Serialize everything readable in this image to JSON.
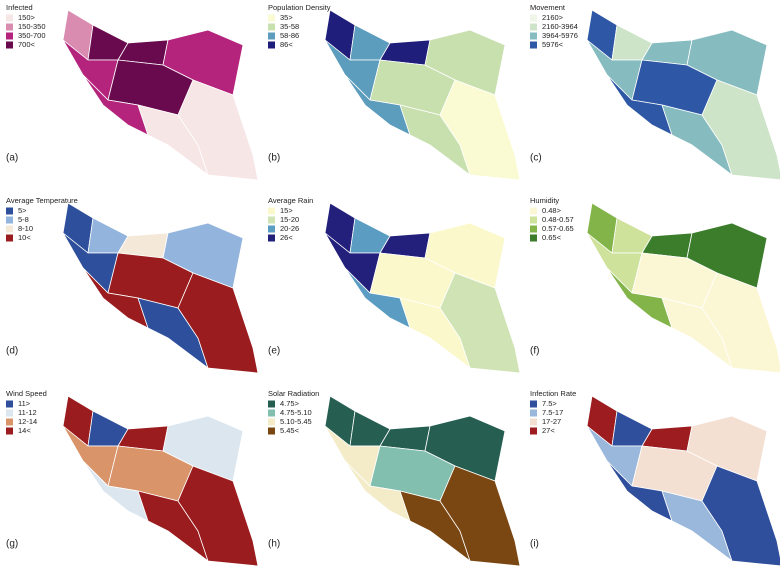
{
  "panels": [
    {
      "letter": "(a)",
      "title": "Infected",
      "legend": [
        {
          "label": "150>",
          "color": "#f7e6e6"
        },
        {
          "label": "150-350",
          "color": "#d98bb0"
        },
        {
          "label": "350-700",
          "color": "#b4237c"
        },
        {
          "label": "700<",
          "color": "#6a0a4e"
        }
      ]
    },
    {
      "letter": "(b)",
      "title": "Population Density",
      "legend": [
        {
          "label": "35>",
          "color": "#fafbd3"
        },
        {
          "label": "35-58",
          "color": "#c8dfae"
        },
        {
          "label": "58-86",
          "color": "#5c9cbc"
        },
        {
          "label": "86<",
          "color": "#1f1e7a"
        }
      ]
    },
    {
      "letter": "(c)",
      "title": "Movement",
      "legend": [
        {
          "label": "2160>",
          "color": "#eff6e8"
        },
        {
          "label": "2160-3964",
          "color": "#cde4c8"
        },
        {
          "label": "3964-5976",
          "color": "#86bcc0"
        },
        {
          "label": "5976<",
          "color": "#2e58a6"
        }
      ]
    },
    {
      "letter": "(d)",
      "title": "Average Temperature",
      "legend": [
        {
          "label": "5>",
          "color": "#2e4f9c"
        },
        {
          "label": "5-8",
          "color": "#93b4dc"
        },
        {
          "label": "8-10",
          "color": "#f4e8d8"
        },
        {
          "label": "10<",
          "color": "#9a1c1f"
        }
      ]
    },
    {
      "letter": "(e)",
      "title": "Average Rain",
      "legend": [
        {
          "label": "15>",
          "color": "#fbf8cb"
        },
        {
          "label": "15-20",
          "color": "#cfe3b4"
        },
        {
          "label": "20-26",
          "color": "#5b9cc3"
        },
        {
          "label": "26<",
          "color": "#23207b"
        }
      ]
    },
    {
      "letter": "(f)",
      "title": "Humidity",
      "legend": [
        {
          "label": "0.48>",
          "color": "#fbf7d5"
        },
        {
          "label": "0.48-0.57",
          "color": "#cfe29c"
        },
        {
          "label": "0.57-0.65",
          "color": "#83b449"
        },
        {
          "label": "0.65<",
          "color": "#3c7d2c"
        }
      ]
    },
    {
      "letter": "(g)",
      "title": "Wind Speed",
      "legend": [
        {
          "label": "11>",
          "color": "#2f4f9c"
        },
        {
          "label": "11-12",
          "color": "#dbe6ef"
        },
        {
          "label": "12-14",
          "color": "#d9946a"
        },
        {
          "label": "14<",
          "color": "#9b1c1f"
        }
      ]
    },
    {
      "letter": "(h)",
      "title": "Solar Radiation",
      "legend": [
        {
          "label": "4.75>",
          "color": "#265f52"
        },
        {
          "label": "4.75-5.10",
          "color": "#83bfae"
        },
        {
          "label": "5.10-5.45",
          "color": "#f4ecc8"
        },
        {
          "label": "5.45<",
          "color": "#7a4712"
        }
      ]
    },
    {
      "letter": "(i)",
      "title": "Infection Rate",
      "legend": [
        {
          "label": "7.5>",
          "color": "#2f4f9c"
        },
        {
          "label": "7.5-17",
          "color": "#9ab7dc"
        },
        {
          "label": "17-27",
          "color": "#f3e0d2"
        },
        {
          "label": "27<",
          "color": "#9c1c20"
        }
      ]
    }
  ]
}
